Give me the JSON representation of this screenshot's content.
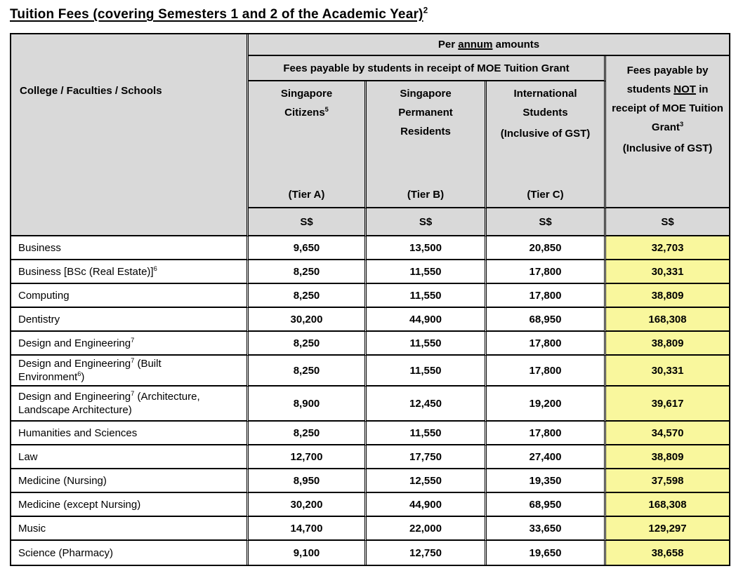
{
  "title": {
    "text": "Tuition Fees (covering Semesters 1 and 2 of the Academic Year)",
    "sup": "2"
  },
  "colors": {
    "header_bg": "#d9d9d9",
    "highlight_bg": "#f9f79d",
    "border_color": "#000000",
    "text_color": "#000000"
  },
  "table": {
    "header": {
      "corner": "College / Faculties / Schools",
      "per_annum": {
        "pre": "Per ",
        "underlined": "annum",
        "post": " amounts"
      },
      "grant": "Fees payable by students in receipt of MOE Tuition Grant",
      "no_grant": {
        "pre": "Fees payable by students ",
        "underlined": "NOT",
        "post": " in receipt of MOE Tuition Grant",
        "sup": "3",
        "gst": "(Inclusive of GST)"
      },
      "columns": [
        {
          "lines": [
            "Singapore",
            "Citizens"
          ],
          "sup": "5",
          "gst": "",
          "tier": "(Tier A)"
        },
        {
          "lines": [
            "Singapore",
            "Permanent",
            "Residents"
          ],
          "sup": "",
          "gst": "",
          "tier": "(Tier B)"
        },
        {
          "lines": [
            "International",
            "Students"
          ],
          "sup": "",
          "gst": "(Inclusive of GST)",
          "tier": "(Tier C)"
        }
      ],
      "currency": "S$"
    },
    "rows": [
      {
        "label_parts": [
          {
            "text": "Business"
          }
        ],
        "values": [
          "9,650",
          "13,500",
          "20,850"
        ],
        "no_grant": "32,703",
        "tall": false
      },
      {
        "label_parts": [
          {
            "text": "Business [BSc (Real Estate)]"
          },
          {
            "text": "6",
            "sup": true
          }
        ],
        "values": [
          "8,250",
          "11,550",
          "17,800"
        ],
        "no_grant": "30,331",
        "tall": false
      },
      {
        "label_parts": [
          {
            "text": "Computing"
          }
        ],
        "values": [
          "8,250",
          "11,550",
          "17,800"
        ],
        "no_grant": "38,809",
        "tall": false
      },
      {
        "label_parts": [
          {
            "text": "Dentistry"
          }
        ],
        "values": [
          "30,200",
          "44,900",
          "68,950"
        ],
        "no_grant": "168,308",
        "tall": false
      },
      {
        "label_parts": [
          {
            "text": "Design and Engineering"
          },
          {
            "text": "7",
            "sup": true
          }
        ],
        "values": [
          "8,250",
          "11,550",
          "17,800"
        ],
        "no_grant": "38,809",
        "tall": false
      },
      {
        "label_parts": [
          {
            "text": "Design and Engineering"
          },
          {
            "text": "7",
            "sup": true
          },
          {
            "text": " (Built Environment"
          },
          {
            "text": "6",
            "sup": true
          },
          {
            "text": ")"
          }
        ],
        "values": [
          "8,250",
          "11,550",
          "17,800"
        ],
        "no_grant": "30,331",
        "tall": false
      },
      {
        "label_parts": [
          {
            "text": "Design and Engineering"
          },
          {
            "text": "7",
            "sup": true
          },
          {
            "text": " (Architecture, Landscape Architecture)"
          }
        ],
        "values": [
          "8,900",
          "12,450",
          "19,200"
        ],
        "no_grant": "39,617",
        "tall": true
      },
      {
        "label_parts": [
          {
            "text": "Humanities and Sciences"
          }
        ],
        "values": [
          "8,250",
          "11,550",
          "17,800"
        ],
        "no_grant": "34,570",
        "tall": false
      },
      {
        "label_parts": [
          {
            "text": "Law"
          }
        ],
        "values": [
          "12,700",
          "17,750",
          "27,400"
        ],
        "no_grant": "38,809",
        "tall": false
      },
      {
        "label_parts": [
          {
            "text": "Medicine (Nursing)"
          }
        ],
        "values": [
          "8,950",
          "12,550",
          "19,350"
        ],
        "no_grant": "37,598",
        "tall": false
      },
      {
        "label_parts": [
          {
            "text": "Medicine (except Nursing)"
          }
        ],
        "values": [
          "30,200",
          "44,900",
          "68,950"
        ],
        "no_grant": "168,308",
        "tall": false
      },
      {
        "label_parts": [
          {
            "text": "Music"
          }
        ],
        "values": [
          "14,700",
          "22,000",
          "33,650"
        ],
        "no_grant": "129,297",
        "tall": false
      },
      {
        "label_parts": [
          {
            "text": "Science (Pharmacy)"
          }
        ],
        "values": [
          "9,100",
          "12,750",
          "19,650"
        ],
        "no_grant": "38,658",
        "tall": false
      }
    ]
  }
}
